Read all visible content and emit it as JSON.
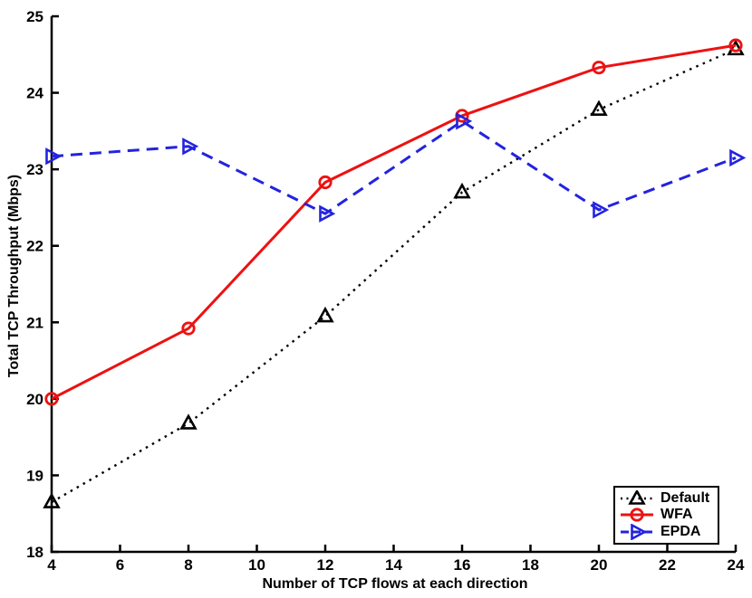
{
  "figure": {
    "background": "#FFFFFF",
    "axis_color": "#000000"
  },
  "chart_data": {
    "type": "line",
    "title": "",
    "xlabel": "Number of TCP flows at each direction",
    "ylabel": "Total TCP Throughput (Mbps)",
    "xlim": [
      4,
      24
    ],
    "ylim": [
      18,
      25
    ],
    "xticks": [
      4,
      6,
      8,
      10,
      12,
      14,
      16,
      18,
      20,
      22,
      24
    ],
    "yticks": [
      18,
      19,
      20,
      21,
      22,
      23,
      24,
      25
    ],
    "grid": false,
    "legend_position": "lower-right",
    "x": [
      4,
      8,
      12,
      16,
      20,
      24
    ],
    "series": [
      {
        "name": "Default",
        "color": "#000000",
        "line_style": "dotted",
        "marker": "triangle-up",
        "values": [
          18.65,
          19.68,
          21.08,
          22.7,
          23.78,
          24.57
        ]
      },
      {
        "name": "WFA",
        "color": "#EE1111",
        "line_style": "solid",
        "marker": "circle",
        "values": [
          20.0,
          20.92,
          22.83,
          23.7,
          24.33,
          24.62
        ]
      },
      {
        "name": "EPDA",
        "color": "#2323DF",
        "line_style": "dashed",
        "marker": "triangle-right",
        "values": [
          23.17,
          23.3,
          22.42,
          23.63,
          22.47,
          23.15
        ]
      }
    ]
  }
}
